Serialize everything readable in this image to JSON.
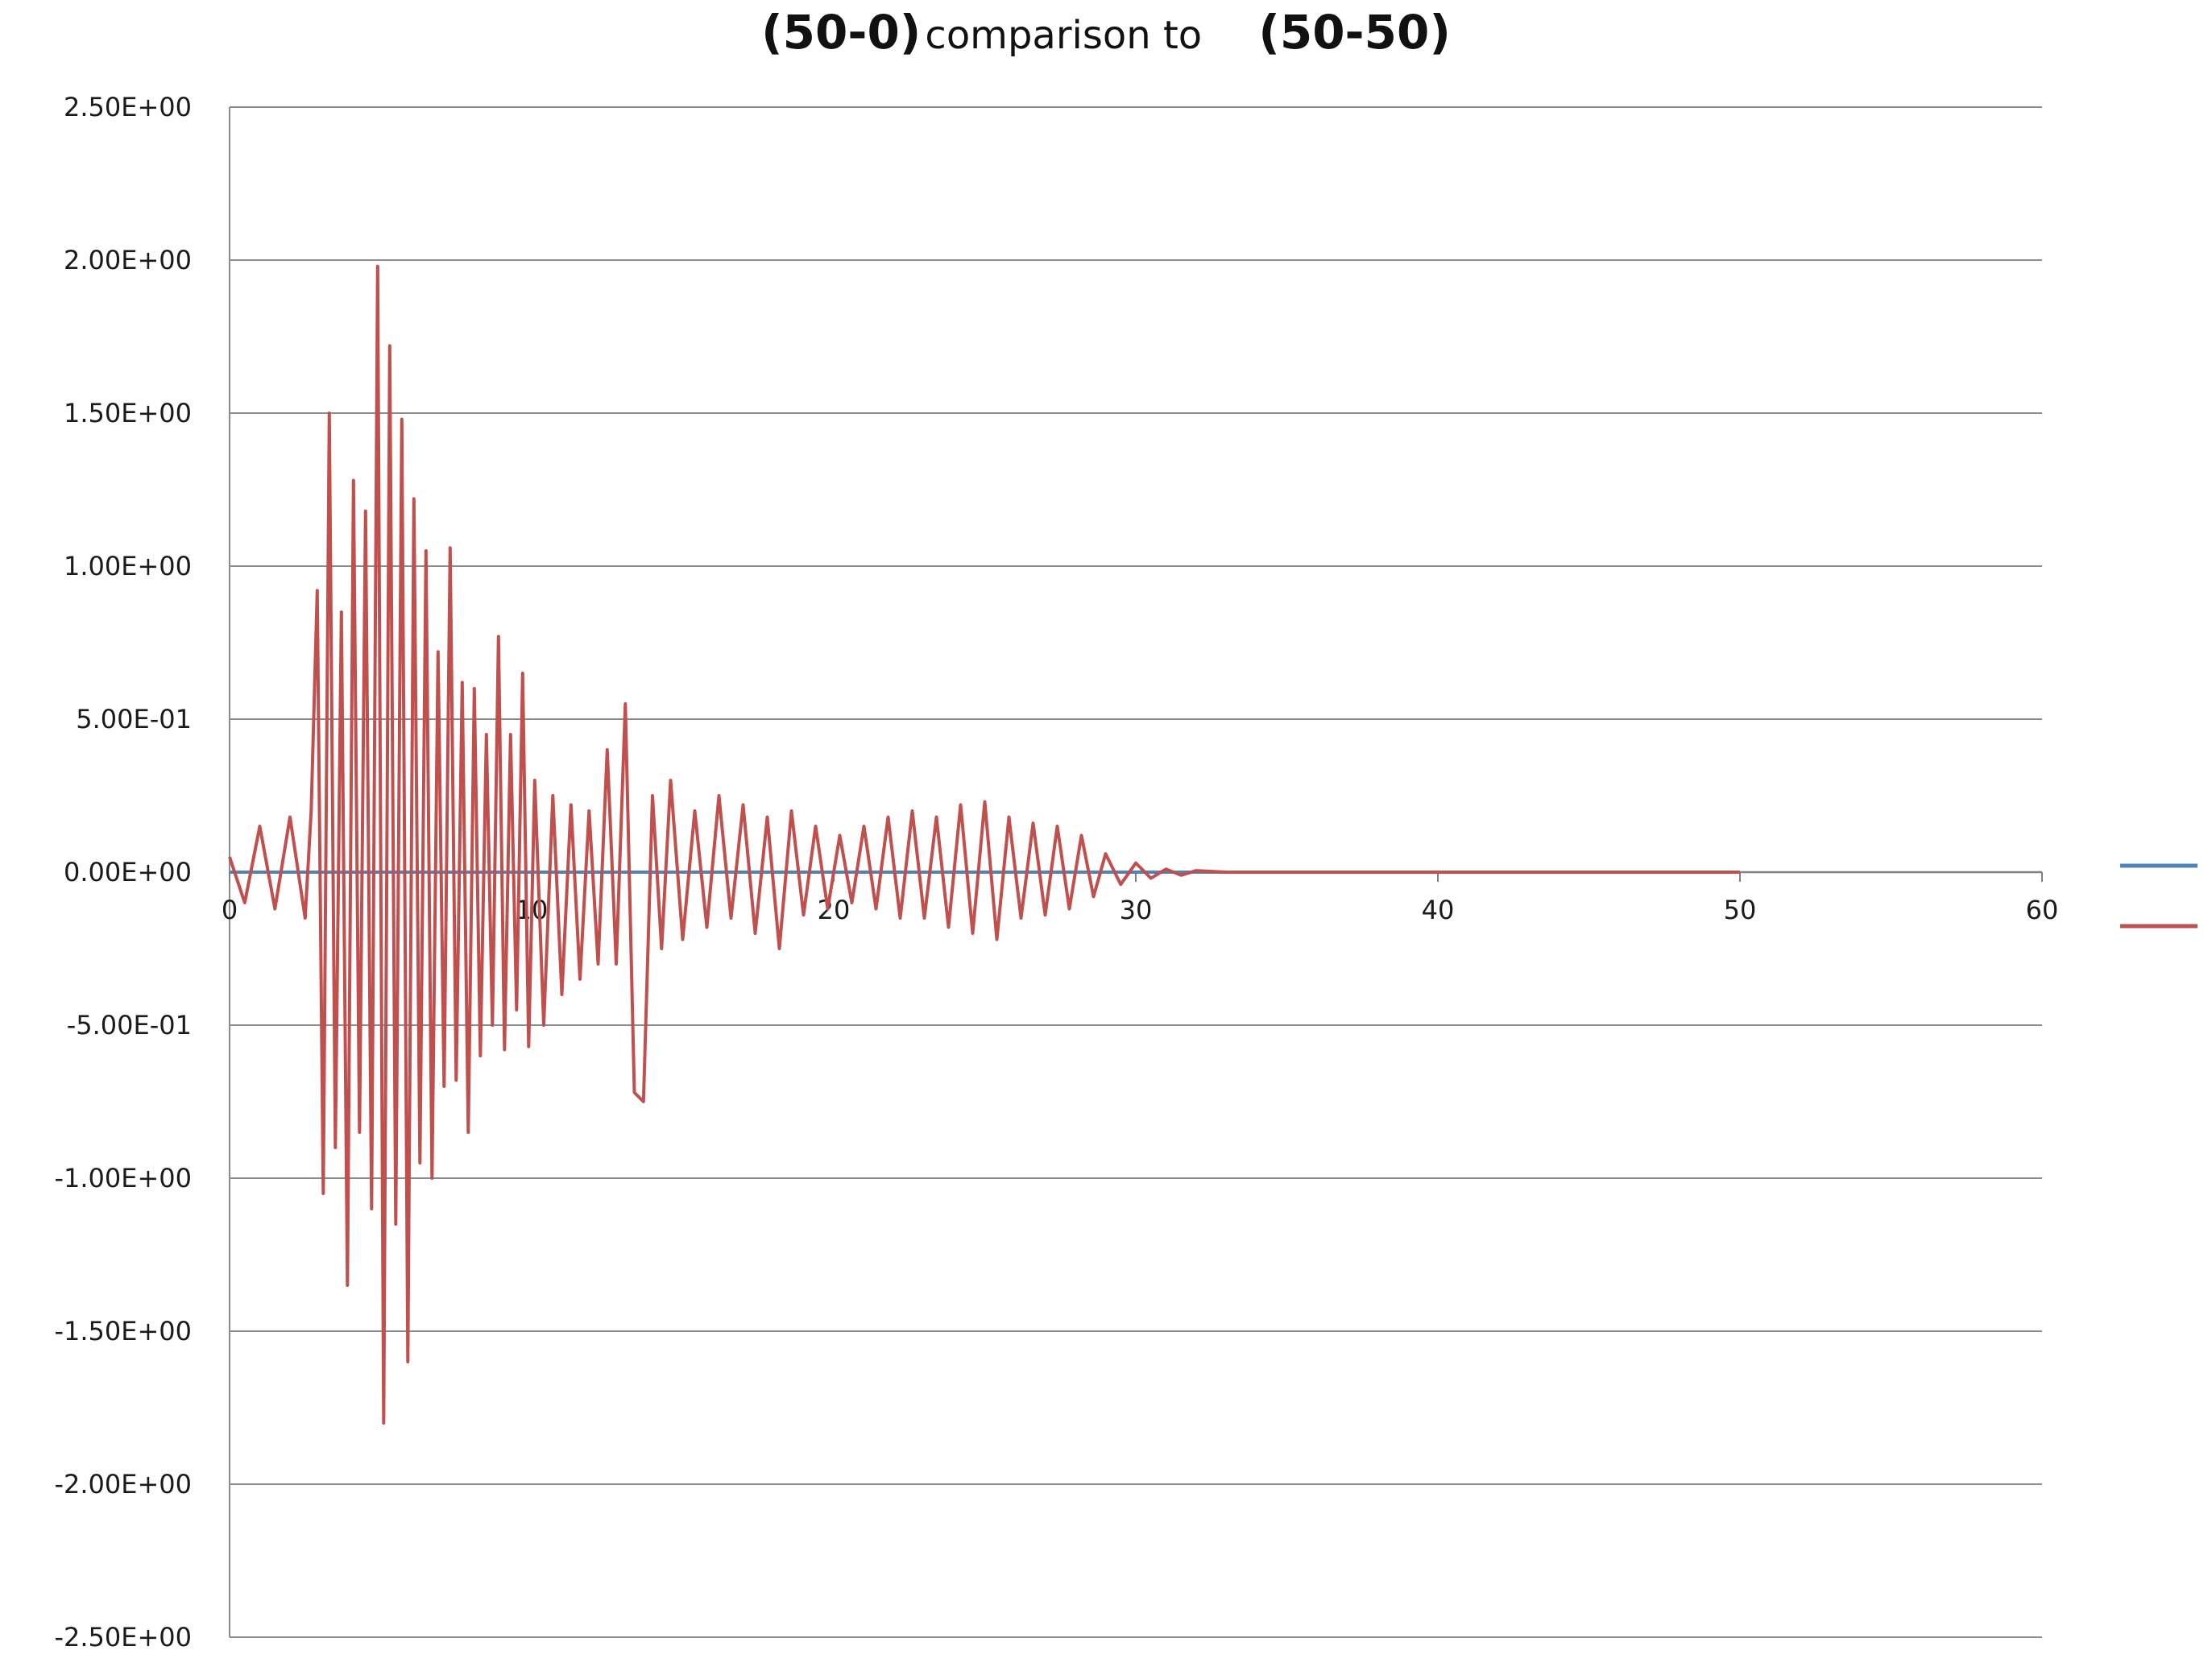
{
  "chart_data": {
    "type": "line",
    "title_parts": [
      "(50-0)",
      "comparison to",
      "(50-50)"
    ],
    "xlabel": "",
    "ylabel": "",
    "xlim": [
      0,
      60
    ],
    "ylim": [
      -2.5,
      2.5
    ],
    "x_ticks": [
      0,
      10,
      20,
      30,
      40,
      50,
      60
    ],
    "x_tick_labels": [
      "0",
      "10",
      "20",
      "30",
      "40",
      "50",
      "60"
    ],
    "y_ticks": [
      2.5,
      2.0,
      1.5,
      1.0,
      0.5,
      0.0,
      -0.5,
      -1.0,
      -1.5,
      -2.0,
      -2.5
    ],
    "y_tick_labels": [
      "2.50E+00",
      "2.00E+00",
      "1.50E+00",
      "1.00E+00",
      "5.00E-01",
      "0.00E+00",
      "-5.00E-01",
      "-1.00E+00",
      "-1.50E+00",
      "-2.00E+00",
      "-2.50E+00"
    ],
    "grid": "horizontal",
    "legend": "right",
    "series": [
      {
        "color": "#4f81bd",
        "x": [
          0,
          50
        ],
        "y": [
          0,
          0
        ]
      },
      {
        "color": "#c0504d",
        "x": [
          0,
          0.5,
          1,
          1.5,
          2,
          2.5,
          2.7,
          2.9,
          3.1,
          3.3,
          3.5,
          3.7,
          3.9,
          4.1,
          4.3,
          4.5,
          4.7,
          4.9,
          5.1,
          5.3,
          5.5,
          5.7,
          5.9,
          6.1,
          6.3,
          6.5,
          6.7,
          6.9,
          7.1,
          7.3,
          7.5,
          7.7,
          7.9,
          8.1,
          8.3,
          8.5,
          8.7,
          8.9,
          9.1,
          9.3,
          9.5,
          9.7,
          9.9,
          10.1,
          10.4,
          10.7,
          11,
          11.3,
          11.6,
          11.9,
          12.2,
          12.5,
          12.8,
          13.1,
          13.4,
          13.7,
          14,
          14.3,
          14.6,
          15,
          15.4,
          15.8,
          16.2,
          16.6,
          17,
          17.4,
          17.8,
          18.2,
          18.6,
          19,
          19.4,
          19.8,
          20.2,
          20.6,
          21,
          21.4,
          21.8,
          22.2,
          22.6,
          23,
          23.4,
          23.8,
          24.2,
          24.6,
          25,
          25.4,
          25.8,
          26.2,
          26.6,
          27,
          27.4,
          27.8,
          28.2,
          28.6,
          29,
          29.5,
          30,
          30.5,
          31,
          31.5,
          32,
          33,
          34,
          36,
          40,
          45,
          50
        ],
        "y": [
          0.05,
          -0.1,
          0.15,
          -0.12,
          0.18,
          -0.15,
          0.2,
          0.92,
          -1.05,
          1.5,
          -0.9,
          0.85,
          -1.35,
          1.28,
          -0.85,
          1.18,
          -1.1,
          1.98,
          -1.8,
          1.72,
          -1.15,
          1.48,
          -1.6,
          1.22,
          -0.95,
          1.05,
          -1.0,
          0.72,
          -0.7,
          1.06,
          -0.68,
          0.62,
          -0.85,
          0.6,
          -0.6,
          0.45,
          -0.5,
          0.77,
          -0.58,
          0.45,
          -0.45,
          0.65,
          -0.57,
          0.3,
          -0.5,
          0.25,
          -0.4,
          0.22,
          -0.35,
          0.2,
          -0.3,
          0.4,
          -0.3,
          0.55,
          -0.72,
          -0.75,
          0.25,
          -0.25,
          0.3,
          -0.22,
          0.2,
          -0.18,
          0.25,
          -0.15,
          0.22,
          -0.2,
          0.18,
          -0.25,
          0.2,
          -0.14,
          0.15,
          -0.12,
          0.12,
          -0.1,
          0.15,
          -0.12,
          0.18,
          -0.15,
          0.2,
          -0.15,
          0.18,
          -0.18,
          0.22,
          -0.2,
          0.23,
          -0.22,
          0.18,
          -0.15,
          0.16,
          -0.14,
          0.15,
          -0.12,
          0.12,
          -0.08,
          0.06,
          -0.04,
          0.03,
          -0.02,
          0.01,
          -0.01,
          0.005,
          0,
          0,
          0,
          0,
          0,
          0
        ]
      }
    ]
  }
}
